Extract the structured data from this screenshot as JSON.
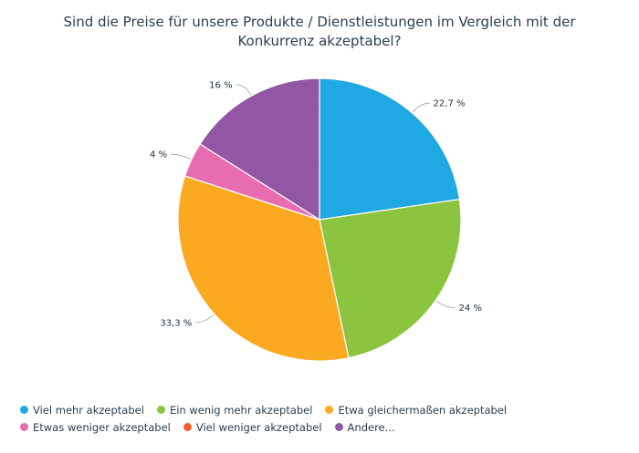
{
  "chart_data": {
    "type": "pie",
    "title": "Sind die Preise für unsere Produkte / Dienstleistungen im Vergleich mit der Konkurrenz akzeptabel?",
    "title_lines": [
      "Sind die Preise für unsere Produkte / Dienstleistungen im Vergleich mit der",
      "Konkurrenz akzeptabel?"
    ],
    "slices": [
      {
        "name": "Viel mehr akzeptabel",
        "value": 22.7,
        "label": "22,7 %",
        "color": "#1fa8e1"
      },
      {
        "name": "Ein wenig mehr akzeptabel",
        "value": 24,
        "label": "24 %",
        "color": "#8bc540"
      },
      {
        "name": "Etwa gleichermaßen akzeptabel",
        "value": 33.3,
        "label": "33,3 %",
        "color": "#fba920"
      },
      {
        "name": "Etwas weniger akzeptabel",
        "value": 4,
        "label": "4 %",
        "color": "#e86cb0"
      },
      {
        "name": "Viel weniger akzeptabel",
        "value": 0,
        "label": "",
        "color": "#f05e2b"
      },
      {
        "name": "Andere...",
        "value": 16,
        "label": "16 %",
        "color": "#9356a4"
      }
    ],
    "legend_position": "bottom",
    "legend_rows": [
      [
        0,
        1,
        2
      ],
      [
        3,
        4,
        5
      ]
    ]
  }
}
